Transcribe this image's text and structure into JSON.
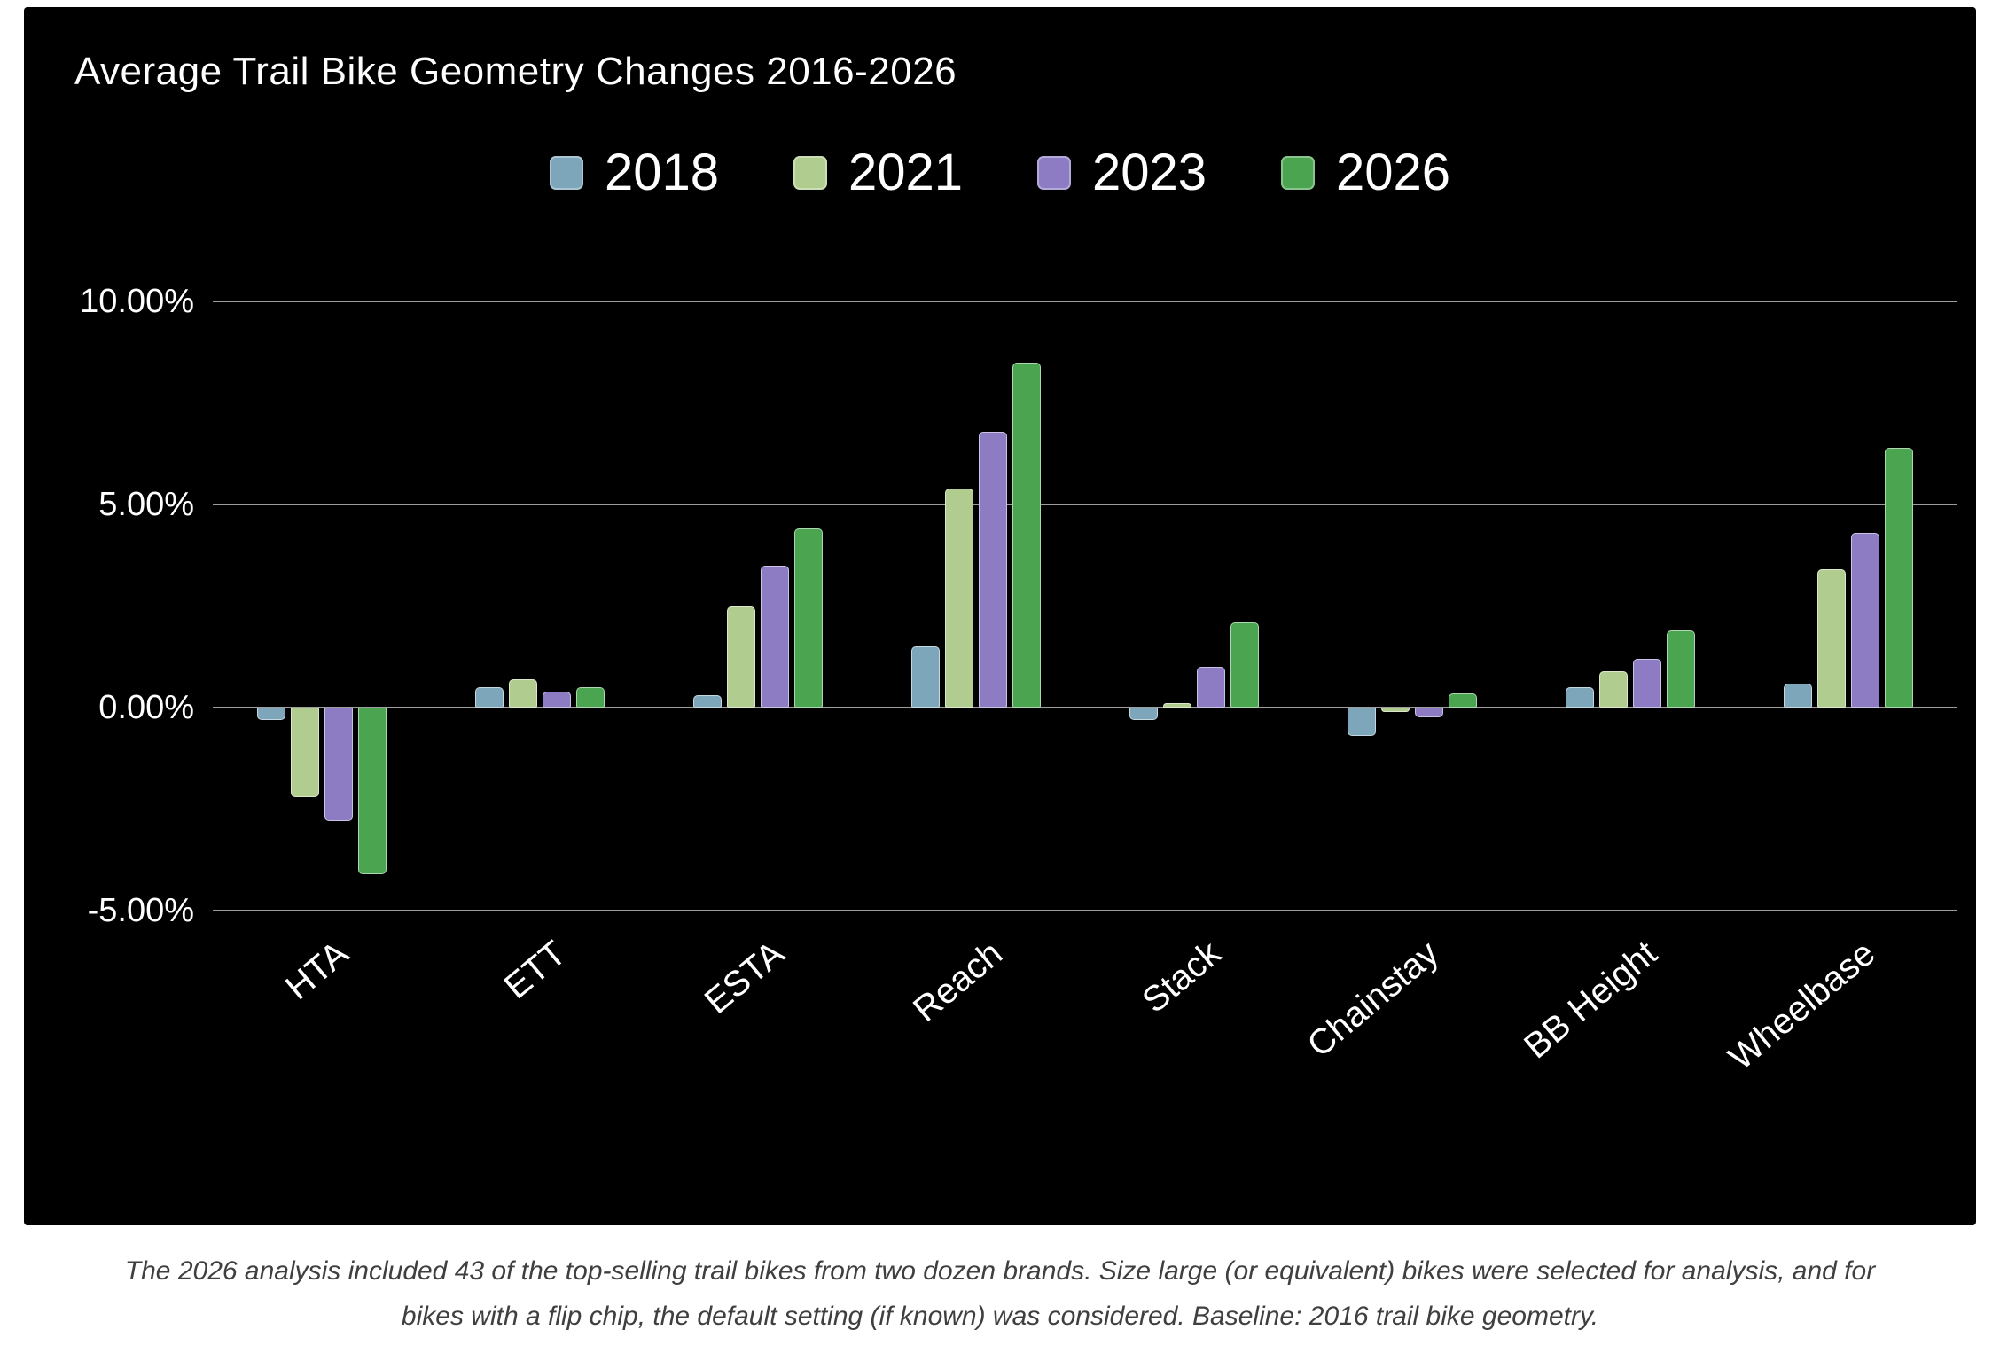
{
  "footnote": "The 2026 analysis included 43 of the top-selling trail bikes from two dozen brands. Size large (or equivalent) bikes were selected for analysis, and for bikes with a flip chip, the default setting (if known) was considered. Baseline: 2016 trail bike geometry.",
  "chart_data": {
    "type": "bar",
    "title": "Average Trail Bike Geometry Changes 2016-2026",
    "categories": [
      "HTA",
      "ETT",
      "ESTA",
      "Reach",
      "Stack",
      "Chainstay",
      "BB Height",
      "Wheelbase"
    ],
    "series": [
      {
        "name": "2018",
        "color": "#7ea6ba",
        "values": [
          -0.3,
          0.5,
          0.3,
          1.5,
          -0.3,
          -0.7,
          0.5,
          0.6
        ]
      },
      {
        "name": "2021",
        "color": "#b1cc8f",
        "values": [
          -2.2,
          0.7,
          2.5,
          5.4,
          0.1,
          -0.1,
          0.9,
          3.4
        ]
      },
      {
        "name": "2023",
        "color": "#8d7bc4",
        "values": [
          -2.8,
          0.4,
          3.5,
          6.8,
          1.0,
          -0.25,
          1.2,
          4.3
        ]
      },
      {
        "name": "2026",
        "color": "#4aa450",
        "values": [
          -4.1,
          0.5,
          4.4,
          8.5,
          2.1,
          0.35,
          1.9,
          6.4
        ]
      }
    ],
    "xlabel": "",
    "ylabel": "",
    "yticks": [
      10,
      5,
      0,
      -5
    ],
    "ytick_labels": [
      "10.00%",
      "5.00%",
      "0.00%",
      "-5.00%"
    ],
    "ylim": [
      -5,
      10
    ],
    "grid": true,
    "legend_position": "top",
    "background": "#000000",
    "text_color": "#ffffff",
    "gridline_color": "#9d9d9d"
  }
}
